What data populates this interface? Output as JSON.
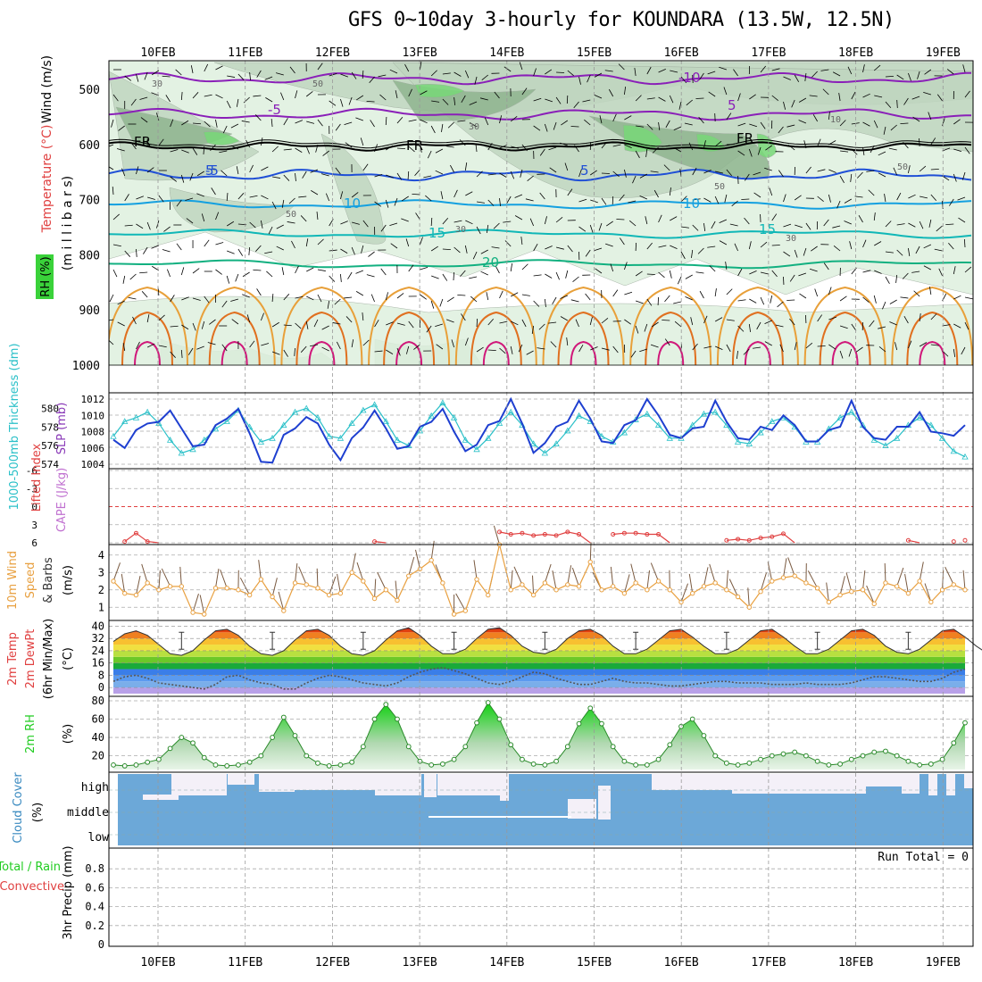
{
  "title": "GFS 0~10day 3-hourly for KOUNDARA (13.5W, 12.5N)",
  "date_labels": [
    "10FEB",
    "11FEB",
    "12FEB",
    "13FEB",
    "14FEB",
    "15FEB",
    "16FEB",
    "17FEB",
    "18FEB",
    "19FEB"
  ],
  "colors": {
    "purple": "#8a1fb8",
    "black": "#000000",
    "blue": "#1f4fd6",
    "ltblue": "#14a0e0",
    "cyan": "#10b7b7",
    "green": "#12b080",
    "orange1": "#e8a03a",
    "orange2": "#e07020",
    "magenta": "#d0187a",
    "rh_light": "#dff0df",
    "rh_mid": "#c0d6c0",
    "rh_dark": "#8fb58f",
    "rh_green": "#78d878",
    "slp": "#1e3fd0",
    "thick": "#2ac0c8",
    "li": "#e04040",
    "wind": "#e8a040",
    "barb": "#7a5a40",
    "rh2m": "#22cc22",
    "cloud_blue": "#6ca8d8",
    "cloud_white": "#f4f0f8"
  },
  "panels": {
    "upper": {
      "ylabel_wind": "Wind (m/s)",
      "ylabel_temp": "Temperature (°C)",
      "ylabel_rh": "RH (%)",
      "ylabel_mb": "(m i l l i b a r s)",
      "pressure_ticks": [
        "500",
        "600",
        "700",
        "800",
        "900",
        "1000"
      ],
      "contour_labels": [
        "-10",
        "-5",
        "5",
        "-5",
        "FR",
        "FR",
        "FR",
        "5",
        "5",
        "10",
        "10",
        "15",
        "15",
        "20"
      ],
      "rh_labels": [
        "30",
        "50",
        "30",
        "50",
        "30",
        "30",
        "50",
        "10",
        "50"
      ]
    },
    "slp": {
      "ylabel_thick": "1000-500mb Thickness (dm)",
      "ylabel_slp": "SLP (mb)",
      "left_ticks": [
        "580",
        "578",
        "576",
        "574"
      ],
      "right_ticks": [
        "1012",
        "1010",
        "1008",
        "1006",
        "1004"
      ]
    },
    "li": {
      "ylabel_li": "Lifted Index",
      "ylabel_cape": "CAPE (J/kg)",
      "ticks": [
        "-6",
        "-3",
        "0",
        "3",
        "6"
      ]
    },
    "wind10": {
      "ylabel1": "10m Wind",
      "ylabel2": "Speed",
      "ylabel3": "& Barbs",
      "unit": "(m/s)",
      "ticks": [
        "4",
        "3",
        "2",
        "1"
      ]
    },
    "temp": {
      "ylabel1": "2m Temp",
      "ylabel2": "2m DewPt",
      "ylabel3": "(6hr Min/Max)",
      "unit": "(°C)",
      "ticks": [
        "40",
        "32",
        "24",
        "16",
        "8",
        "0"
      ]
    },
    "rh2m": {
      "ylabel": "2m RH",
      "unit": "(%)",
      "ticks": [
        "80",
        "60",
        "40",
        "20"
      ]
    },
    "cloud": {
      "ylabel": "Cloud Cover",
      "unit": "(%)",
      "levels": [
        "high",
        "middle",
        "low"
      ]
    },
    "precip": {
      "ylabel1": "Total / Rain",
      "ylabel2": "Convective",
      "ylabel3": "3hr Precip (mm)",
      "ticks": [
        "0.8",
        "0.6",
        "0.4",
        "0.2",
        "0"
      ],
      "run_total": "Run Total = 0"
    }
  },
  "chart_data": [
    {
      "type": "line",
      "title": "1000-500mb Thickness (dm) / SLP (mb)",
      "x_unit": "3-hourly steps from 09FEB 12Z",
      "series": [
        {
          "name": "SLP (mb)",
          "axis": "right",
          "ylim": [
            1004,
            1012
          ],
          "values": [
            1007.0,
            1006.0,
            1008.2,
            1009.0,
            1009.2,
            1010.6,
            1008.4,
            1006.2,
            1006.4,
            1008.8,
            1009.6,
            1010.8,
            1007.8,
            1004.3,
            1004.2,
            1007.6,
            1008.4,
            1009.8,
            1009.0,
            1006.4,
            1004.5,
            1007.2,
            1008.5,
            1010.6,
            1008.4,
            1005.9,
            1006.2,
            1008.6,
            1009.2,
            1010.8,
            1008.0,
            1005.6,
            1006.4,
            1008.8,
            1009.3,
            1012.0,
            1009.0,
            1005.4,
            1006.6,
            1008.6,
            1009.2,
            1011.8,
            1009.6,
            1006.8,
            1006.6,
            1008.8,
            1009.4,
            1012.0,
            1010.0,
            1007.6,
            1007.2,
            1008.4,
            1008.6,
            1011.8,
            1009.2,
            1007.2,
            1007.0,
            1008.6,
            1008.2,
            1010.0,
            1008.8,
            1006.8,
            1006.8,
            1008.2,
            1008.6,
            1011.8,
            1008.6,
            1007.2,
            1007.0,
            1008.6,
            1008.6,
            1010.4,
            1008.0,
            1007.8,
            1007.5,
            1008.8
          ]
        },
        {
          "name": "1000-500mb Thickness (dm)",
          "axis": "left",
          "ylim": [
            574,
            581
          ],
          "values": [
            577.0,
            578.6,
            579.0,
            579.6,
            578.4,
            576.6,
            575.2,
            575.6,
            576.6,
            577.8,
            578.6,
            579.8,
            578.0,
            576.4,
            576.8,
            578.2,
            579.6,
            580.0,
            579.0,
            577.0,
            576.8,
            578.4,
            579.8,
            580.4,
            578.6,
            576.6,
            576.0,
            577.6,
            579.2,
            580.6,
            579.0,
            576.6,
            575.6,
            576.8,
            578.4,
            579.6,
            578.2,
            576.2,
            575.2,
            576.2,
            577.6,
            579.2,
            578.6,
            577.0,
            576.4,
            577.4,
            578.8,
            579.4,
            578.2,
            576.8,
            576.8,
            578.2,
            579.4,
            579.6,
            578.2,
            576.4,
            576.2,
            577.4,
            578.6,
            579.0,
            578.0,
            576.4,
            576.4,
            577.8,
            579.0,
            579.6,
            578.2,
            576.6,
            576.0,
            576.8,
            578.2,
            579.0,
            578.2,
            576.8,
            575.4,
            574.8
          ]
        }
      ]
    },
    {
      "type": "line",
      "title": "Lifted Index / CAPE (J/kg)",
      "ylim": [
        -6,
        6
      ],
      "series": [
        {
          "name": "Lifted Index",
          "values": [
            6,
            5.8,
            4.4,
            5.8,
            6,
            6,
            6,
            6,
            6,
            6,
            6,
            6,
            6,
            6,
            6,
            6,
            6,
            6,
            6,
            6,
            6,
            6,
            6,
            5.8,
            6,
            6,
            6,
            6,
            6,
            6,
            6,
            6,
            6,
            6,
            4.2,
            4.6,
            4.4,
            4.8,
            4.6,
            4.8,
            4.2,
            4.6,
            6,
            6,
            4.6,
            4.4,
            4.4,
            4.6,
            4.6,
            6,
            6,
            6,
            6,
            6,
            5.6,
            5.4,
            5.6,
            5.2,
            5.0,
            4.5,
            6,
            6,
            6,
            6,
            6,
            6,
            6,
            6,
            6,
            6,
            5.6,
            6,
            6,
            6,
            5.8,
            5.6
          ]
        }
      ]
    },
    {
      "type": "line",
      "title": "10m Wind Speed & Barbs (m/s)",
      "ylim": [
        0.5,
        4.5
      ],
      "series": [
        {
          "name": "10m Wind Speed",
          "values": [
            2.5,
            1.8,
            1.7,
            2.4,
            2.0,
            2.2,
            2.2,
            0.7,
            0.6,
            2.1,
            2.1,
            2.0,
            1.7,
            2.6,
            1.6,
            0.8,
            2.4,
            2.3,
            2.1,
            1.7,
            1.8,
            3.0,
            2.5,
            1.5,
            2.0,
            1.4,
            2.8,
            3.2,
            3.7,
            2.4,
            0.6,
            0.8,
            2.6,
            1.7,
            4.6,
            2.0,
            2.3,
            1.7,
            2.4,
            2.0,
            2.3,
            2.2,
            3.6,
            2.0,
            2.2,
            1.8,
            2.4,
            2.0,
            2.5,
            2.0,
            1.3,
            1.8,
            2.2,
            2.4,
            2.0,
            1.6,
            1.0,
            1.9,
            2.5,
            2.7,
            2.8,
            2.4,
            2.1,
            1.3,
            1.7,
            1.9,
            2.0,
            1.2,
            2.4,
            2.2,
            1.8,
            2.5,
            1.3,
            2.0,
            2.3,
            2.0
          ]
        }
      ]
    },
    {
      "type": "area",
      "title": "2m Temp / 2m DewPt (°C)",
      "ylim": [
        -4,
        42
      ],
      "series": [
        {
          "name": "2m Temp",
          "values": [
            30,
            35,
            37,
            34,
            28,
            22,
            21,
            24,
            31,
            37,
            38,
            34,
            27,
            22,
            21,
            24,
            31,
            37,
            38,
            34,
            27,
            22,
            21,
            24,
            31,
            37,
            39,
            34,
            27,
            22,
            22,
            25,
            32,
            38,
            39,
            34,
            27,
            23,
            22,
            25,
            32,
            37,
            38,
            34,
            27,
            22,
            22,
            25,
            31,
            37,
            38,
            33,
            27,
            22,
            22,
            25,
            31,
            37,
            38,
            33,
            27,
            22,
            22,
            25,
            31,
            37,
            38,
            34,
            27,
            23,
            22,
            25,
            31,
            37,
            38,
            33,
            27,
            22
          ]
        },
        {
          "name": "2m DewPt",
          "values": [
            4,
            7,
            8,
            6,
            3,
            2,
            1,
            0,
            -1,
            2,
            7,
            8,
            5,
            3,
            2,
            -1,
            -1,
            3,
            6,
            8,
            7,
            5,
            3,
            2,
            1,
            3,
            7,
            10,
            12,
            13,
            11,
            9,
            6,
            3,
            2,
            4,
            7,
            10,
            9,
            6,
            4,
            2,
            2,
            4,
            6,
            4,
            3,
            3,
            2,
            1,
            1,
            2,
            3,
            4,
            4,
            3,
            3,
            3,
            2,
            2,
            2,
            3,
            2,
            2,
            2,
            3,
            5,
            7,
            7,
            6,
            5,
            4,
            4,
            6,
            10,
            12
          ]
        }
      ]
    },
    {
      "type": "area",
      "title": "2m RH (%)",
      "ylim": [
        5,
        80
      ],
      "series": [
        {
          "name": "2m RH",
          "values": [
            10,
            9,
            10,
            13,
            16,
            28,
            40,
            34,
            18,
            10,
            9,
            10,
            13,
            20,
            40,
            62,
            42,
            20,
            12,
            9,
            10,
            13,
            30,
            60,
            76,
            60,
            30,
            14,
            10,
            11,
            16,
            30,
            56,
            78,
            60,
            32,
            16,
            11,
            10,
            14,
            30,
            55,
            72,
            55,
            30,
            14,
            10,
            10,
            16,
            32,
            52,
            60,
            42,
            20,
            12,
            10,
            12,
            16,
            20,
            22,
            24,
            20,
            14,
            10,
            11,
            16,
            20,
            24,
            25,
            20,
            14,
            10,
            11,
            16,
            34,
            56
          ]
        }
      ]
    },
    {
      "type": "bar",
      "title": "Cloud Cover (%)",
      "categories": [
        "high",
        "middle",
        "low"
      ],
      "values": [
        0,
        0,
        0
      ]
    },
    {
      "type": "bar",
      "title": "3hr Precip (mm)",
      "ylim": [
        0,
        1
      ],
      "values": [
        0,
        0,
        0,
        0,
        0,
        0,
        0,
        0,
        0,
        0
      ],
      "annotation": "Run Total = 0"
    }
  ]
}
